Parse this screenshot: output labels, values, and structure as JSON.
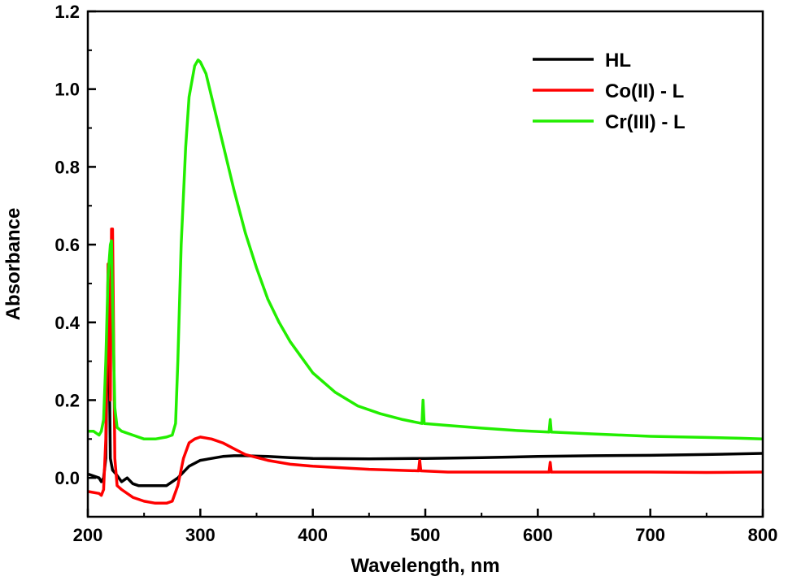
{
  "chart_data": {
    "type": "line",
    "title": "",
    "xlabel": "Wavelength, nm",
    "ylabel": "Absorbance",
    "xlim": [
      200,
      800
    ],
    "ylim": [
      -0.1,
      1.2
    ],
    "xticks": [
      "200",
      "300",
      "400",
      "500",
      "600",
      "700",
      "800"
    ],
    "yticks": [
      "0.0",
      "0.2",
      "0.4",
      "0.6",
      "0.8",
      "1.0",
      "1.2"
    ],
    "grid": false,
    "legend_position": "top-right",
    "series": [
      {
        "name": "HL",
        "color": "#000000",
        "points": [
          [
            200,
            0.01
          ],
          [
            210,
            0.0
          ],
          [
            212,
            -0.01
          ],
          [
            214,
            0.0
          ],
          [
            216,
            0.05
          ],
          [
            218,
            0.48
          ],
          [
            219,
            0.3
          ],
          [
            220,
            0.05
          ],
          [
            222,
            0.02
          ],
          [
            225,
            0.01
          ],
          [
            230,
            -0.01
          ],
          [
            235,
            0.0
          ],
          [
            240,
            -0.015
          ],
          [
            245,
            -0.02
          ],
          [
            250,
            -0.02
          ],
          [
            260,
            -0.02
          ],
          [
            270,
            -0.02
          ],
          [
            280,
            0.0
          ],
          [
            290,
            0.03
          ],
          [
            300,
            0.045
          ],
          [
            310,
            0.05
          ],
          [
            320,
            0.055
          ],
          [
            330,
            0.057
          ],
          [
            340,
            0.057
          ],
          [
            350,
            0.056
          ],
          [
            360,
            0.055
          ],
          [
            380,
            0.052
          ],
          [
            400,
            0.05
          ],
          [
            450,
            0.049
          ],
          [
            500,
            0.05
          ],
          [
            550,
            0.052
          ],
          [
            600,
            0.055
          ],
          [
            650,
            0.057
          ],
          [
            700,
            0.058
          ],
          [
            750,
            0.06
          ],
          [
            800,
            0.063
          ]
        ]
      },
      {
        "name": "Co(II) - L",
        "color": "#ff0000",
        "points": [
          [
            200,
            -0.035
          ],
          [
            210,
            -0.04
          ],
          [
            212,
            -0.045
          ],
          [
            214,
            -0.03
          ],
          [
            216,
            0.1
          ],
          [
            218,
            0.55
          ],
          [
            219,
            0.35
          ],
          [
            220,
            0.2
          ],
          [
            221,
            0.64
          ],
          [
            222,
            0.64
          ],
          [
            223,
            0.35
          ],
          [
            224,
            0.05
          ],
          [
            226,
            -0.02
          ],
          [
            230,
            -0.03
          ],
          [
            240,
            -0.05
          ],
          [
            250,
            -0.06
          ],
          [
            260,
            -0.065
          ],
          [
            270,
            -0.065
          ],
          [
            275,
            -0.06
          ],
          [
            280,
            -0.02
          ],
          [
            285,
            0.05
          ],
          [
            290,
            0.09
          ],
          [
            295,
            0.1
          ],
          [
            300,
            0.105
          ],
          [
            310,
            0.1
          ],
          [
            320,
            0.09
          ],
          [
            330,
            0.075
          ],
          [
            340,
            0.06
          ],
          [
            360,
            0.045
          ],
          [
            380,
            0.035
          ],
          [
            400,
            0.03
          ],
          [
            450,
            0.022
          ],
          [
            494,
            0.018
          ],
          [
            495,
            0.045
          ],
          [
            496,
            0.018
          ],
          [
            520,
            0.015
          ],
          [
            550,
            0.015
          ],
          [
            600,
            0.015
          ],
          [
            610,
            0.015
          ],
          [
            611,
            0.04
          ],
          [
            612,
            0.015
          ],
          [
            650,
            0.015
          ],
          [
            700,
            0.015
          ],
          [
            750,
            0.014
          ],
          [
            800,
            0.015
          ]
        ]
      },
      {
        "name": "Cr(III) - L",
        "color": "#22ee00",
        "points": [
          [
            200,
            0.12
          ],
          [
            205,
            0.12
          ],
          [
            210,
            0.11
          ],
          [
            212,
            0.12
          ],
          [
            214,
            0.15
          ],
          [
            216,
            0.3
          ],
          [
            218,
            0.52
          ],
          [
            220,
            0.6
          ],
          [
            221,
            0.61
          ],
          [
            222,
            0.45
          ],
          [
            224,
            0.18
          ],
          [
            226,
            0.13
          ],
          [
            230,
            0.12
          ],
          [
            240,
            0.11
          ],
          [
            250,
            0.1
          ],
          [
            260,
            0.1
          ],
          [
            270,
            0.105
          ],
          [
            275,
            0.11
          ],
          [
            278,
            0.14
          ],
          [
            280,
            0.3
          ],
          [
            283,
            0.6
          ],
          [
            287,
            0.85
          ],
          [
            290,
            0.98
          ],
          [
            295,
            1.06
          ],
          [
            298,
            1.075
          ],
          [
            300,
            1.07
          ],
          [
            305,
            1.04
          ],
          [
            310,
            0.98
          ],
          [
            320,
            0.86
          ],
          [
            330,
            0.74
          ],
          [
            340,
            0.63
          ],
          [
            350,
            0.54
          ],
          [
            360,
            0.46
          ],
          [
            370,
            0.4
          ],
          [
            380,
            0.35
          ],
          [
            390,
            0.31
          ],
          [
            400,
            0.27
          ],
          [
            420,
            0.22
          ],
          [
            440,
            0.185
          ],
          [
            460,
            0.165
          ],
          [
            480,
            0.15
          ],
          [
            497,
            0.14
          ],
          [
            498,
            0.2
          ],
          [
            499,
            0.14
          ],
          [
            520,
            0.135
          ],
          [
            550,
            0.128
          ],
          [
            580,
            0.122
          ],
          [
            610,
            0.118
          ],
          [
            611,
            0.15
          ],
          [
            612,
            0.118
          ],
          [
            650,
            0.113
          ],
          [
            700,
            0.107
          ],
          [
            750,
            0.104
          ],
          [
            780,
            0.102
          ],
          [
            800,
            0.1
          ]
        ]
      }
    ]
  }
}
